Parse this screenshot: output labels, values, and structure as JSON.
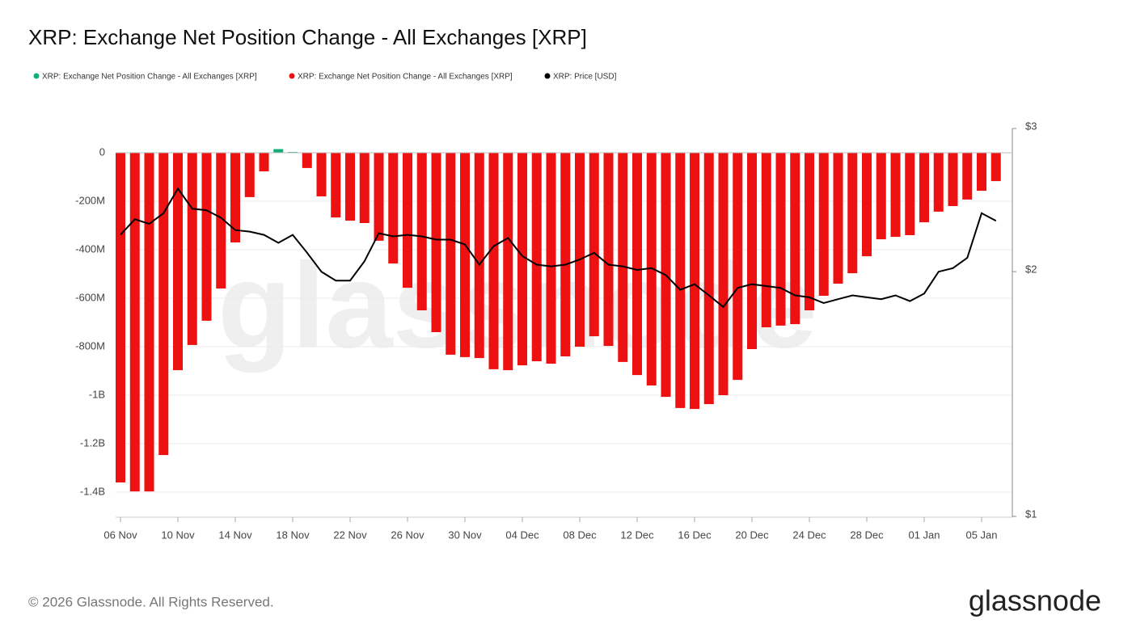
{
  "chart_data": {
    "type": "bar",
    "title": "XRP: Exchange Net Position Change - All Exchanges [XRP]",
    "watermark": "glassnode",
    "categories": [
      "06 Nov",
      null,
      null,
      null,
      "10 Nov",
      null,
      null,
      null,
      "14 Nov",
      null,
      null,
      null,
      "18 Nov",
      null,
      null,
      null,
      "22 Nov",
      null,
      null,
      null,
      "26 Nov",
      null,
      null,
      null,
      "30 Nov",
      null,
      null,
      null,
      "04 Dec",
      null,
      null,
      null,
      "08 Dec",
      null,
      null,
      null,
      "12 Dec",
      null,
      null,
      null,
      "16 Dec",
      null,
      null,
      null,
      "20 Dec",
      null,
      null,
      null,
      "24 Dec",
      null,
      null,
      null,
      "28 Dec",
      null,
      null,
      null,
      "01 Jan",
      null,
      null,
      null,
      "05 Jan",
      null
    ],
    "series": [
      {
        "name": "XRP: Exchange Net Position Change - All Exchanges [XRP]",
        "color": "#0fae7a",
        "values": [
          null,
          null,
          null,
          null,
          null,
          null,
          null,
          null,
          null,
          null,
          null,
          15000000,
          3000000,
          null,
          null,
          null,
          null,
          null,
          null,
          null,
          null,
          null,
          null,
          null,
          null,
          null,
          null,
          null,
          null,
          null,
          null,
          null,
          null,
          null,
          null,
          null,
          null,
          null,
          null,
          null,
          null,
          null,
          null,
          null,
          null,
          null,
          null,
          null,
          null,
          null,
          null,
          null,
          null,
          null,
          null,
          null,
          null,
          null,
          null,
          null,
          null,
          null
        ]
      },
      {
        "name": "XRP: Exchange Net Position Change - All Exchanges [XRP]",
        "color": "#ee1111",
        "values": [
          -1360000000,
          -1397000000,
          -1397000000,
          -1247000000,
          -897000000,
          -793000000,
          -693000000,
          -560000000,
          -370000000,
          -183000000,
          -77000000,
          null,
          null,
          -63000000,
          -180000000,
          -267000000,
          -280000000,
          -290000000,
          -363000000,
          -457000000,
          -557000000,
          -650000000,
          -740000000,
          -833000000,
          -843000000,
          -847000000,
          -893000000,
          -897000000,
          -877000000,
          -860000000,
          -870000000,
          -840000000,
          -800000000,
          -757000000,
          -797000000,
          -863000000,
          -917000000,
          -960000000,
          -1007000000,
          -1053000000,
          -1057000000,
          -1037000000,
          -1000000000,
          -937000000,
          -810000000,
          -720000000,
          -713000000,
          -707000000,
          -650000000,
          -590000000,
          -540000000,
          -497000000,
          -427000000,
          -357000000,
          -347000000,
          -340000000,
          -287000000,
          -243000000,
          -220000000,
          -193000000,
          -157000000,
          -117000000
        ]
      },
      {
        "name": "XRP: Price [USD]",
        "color": "#000000",
        "axis": "y2",
        "type": "line",
        "values": [
          2.22,
          2.32,
          2.29,
          2.36,
          2.53,
          2.39,
          2.38,
          2.33,
          2.25,
          2.24,
          2.22,
          2.17,
          2.22,
          2.11,
          2.0,
          1.95,
          1.95,
          2.06,
          2.23,
          2.21,
          2.22,
          2.21,
          2.19,
          2.19,
          2.16,
          2.04,
          2.15,
          2.2,
          2.09,
          2.04,
          2.03,
          2.04,
          2.07,
          2.11,
          2.04,
          2.03,
          2.01,
          2.02,
          1.98,
          1.9,
          1.93,
          1.87,
          1.81,
          1.91,
          1.93,
          1.92,
          1.91,
          1.87,
          1.86,
          1.83,
          1.85,
          1.87,
          1.86,
          1.85,
          1.87,
          1.84,
          1.88,
          2.0,
          2.02,
          2.08,
          2.36,
          2.31
        ]
      }
    ],
    "ylim": [
      -1500000000,
      100000000
    ],
    "yticks": [
      0,
      {
        "value": -200000000,
        "label": "-200M"
      },
      {
        "value": -400000000,
        "label": "-400M"
      },
      {
        "value": -600000000,
        "label": "-600M"
      },
      {
        "value": -800000000,
        "label": "-800M"
      },
      {
        "value": -1000000000,
        "label": "-1B"
      },
      {
        "value": -1200000000,
        "label": "-1.2B"
      },
      {
        "value": -1400000000,
        "label": "-1.4B"
      }
    ],
    "y2lim": [
      1,
      3
    ],
    "y2log": true,
    "y2ticks": [
      {
        "value": 3,
        "label": "$3"
      },
      {
        "value": 2,
        "label": "$2"
      },
      {
        "value": 1,
        "label": "$1"
      }
    ],
    "grid": true,
    "legend": "top-left",
    "footer": "© 2026 Glassnode. All Rights Reserved.",
    "logo": "glassnode"
  }
}
